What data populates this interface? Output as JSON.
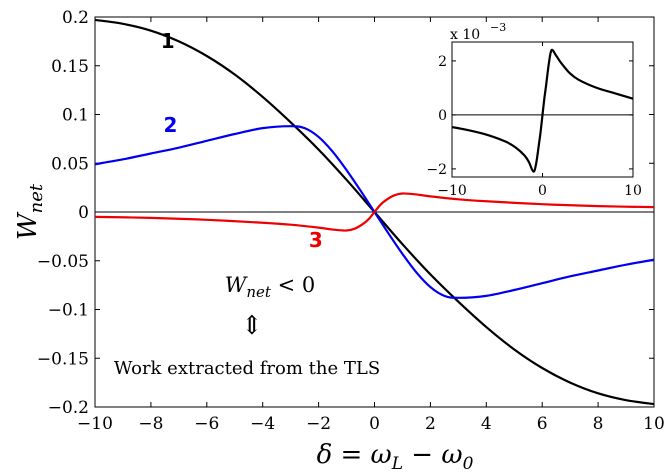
{
  "chart_data": [
    {
      "type": "line",
      "xlabel": "δ = ω_L − ω_0",
      "ylabel": "W_net",
      "xlim": [
        -10,
        10
      ],
      "ylim": [
        -0.2,
        0.2
      ],
      "xticks": [
        -10,
        -8,
        -6,
        -4,
        -2,
        0,
        2,
        4,
        6,
        8,
        10
      ],
      "yticks": [
        -0.2,
        -0.15,
        -0.1,
        -0.05,
        0,
        0.05,
        0.1,
        0.15,
        0.2
      ],
      "xtick_labels": [
        "−10",
        "−8",
        "−6",
        "−4",
        "−2",
        "0",
        "2",
        "4",
        "6",
        "8",
        "10"
      ],
      "ytick_labels": [
        "−0.2",
        "−0.15",
        "−0.1",
        "−0.05",
        "0",
        "0.05",
        "0.1",
        "0.15",
        "0.2"
      ],
      "grid": false,
      "zero_line": true,
      "series": [
        {
          "name": "1",
          "color": "#000000",
          "x": [
            -10,
            -9,
            -8,
            -7,
            -6,
            -5,
            -4,
            -3,
            -2,
            -1,
            0,
            1,
            2,
            3,
            4,
            5,
            6,
            7,
            8,
            9,
            10
          ],
          "values": [
            0.197,
            0.193,
            0.186,
            0.175,
            0.16,
            0.141,
            0.118,
            0.092,
            0.064,
            0.033,
            0.0,
            -0.033,
            -0.064,
            -0.092,
            -0.118,
            -0.141,
            -0.16,
            -0.175,
            -0.186,
            -0.193,
            -0.197
          ]
        },
        {
          "name": "2",
          "color": "#0000ee",
          "x": [
            -10,
            -9,
            -8,
            -7,
            -6,
            -5,
            -4,
            -3,
            -2.5,
            -2,
            -1.5,
            -1,
            -0.5,
            0,
            0.5,
            1,
            1.5,
            2,
            2.5,
            3,
            4,
            5,
            6,
            7,
            8,
            9,
            10
          ],
          "values": [
            0.049,
            0.054,
            0.06,
            0.066,
            0.073,
            0.08,
            0.086,
            0.088,
            0.086,
            0.077,
            0.062,
            0.043,
            0.022,
            0.0,
            -0.022,
            -0.043,
            -0.062,
            -0.077,
            -0.086,
            -0.088,
            -0.086,
            -0.08,
            -0.073,
            -0.066,
            -0.06,
            -0.054,
            -0.049
          ]
        },
        {
          "name": "3",
          "color": "#ee0000",
          "x": [
            -10,
            -8,
            -6,
            -4,
            -3,
            -2,
            -1.5,
            -1,
            -0.7,
            -0.4,
            -0.2,
            0,
            0.2,
            0.4,
            0.7,
            1,
            1.5,
            2,
            3,
            4,
            6,
            8,
            10
          ],
          "values": [
            -0.005,
            -0.006,
            -0.008,
            -0.011,
            -0.013,
            -0.016,
            -0.018,
            -0.019,
            -0.017,
            -0.012,
            -0.007,
            0.0,
            0.007,
            0.012,
            0.017,
            0.019,
            0.018,
            0.016,
            0.013,
            0.011,
            0.008,
            0.006,
            0.005
          ]
        }
      ],
      "annotations": {
        "inequality": "W_net < 0",
        "equivalence_symbol": "⇕",
        "note": "Work extracted from the TLS"
      }
    },
    {
      "type": "line",
      "inset": true,
      "xlim": [
        -10,
        10
      ],
      "ylim": [
        -2.3,
        2.7
      ],
      "xticks": [
        -10,
        0,
        10
      ],
      "yticks": [
        -2,
        0,
        2
      ],
      "xtick_labels": [
        "−10",
        "0",
        "10"
      ],
      "ytick_labels": [
        "−2",
        "0",
        "2"
      ],
      "scale_label": "x 10",
      "scale_exponent": "−3",
      "zero_line": true,
      "series": [
        {
          "color": "#000000",
          "x": [
            -10,
            -8,
            -6,
            -4,
            -3,
            -2,
            -1.5,
            -1,
            -0.7,
            -0.4,
            -0.2,
            0,
            0.2,
            0.4,
            0.7,
            1,
            1.5,
            2,
            3,
            4,
            6,
            8,
            10
          ],
          "values": [
            -0.45,
            -0.58,
            -0.75,
            -1.0,
            -1.2,
            -1.5,
            -1.75,
            -2.1,
            -1.8,
            -1.1,
            -0.6,
            0.0,
            0.6,
            1.1,
            1.9,
            2.4,
            2.2,
            1.95,
            1.55,
            1.3,
            1.0,
            0.8,
            0.6
          ]
        }
      ]
    }
  ]
}
